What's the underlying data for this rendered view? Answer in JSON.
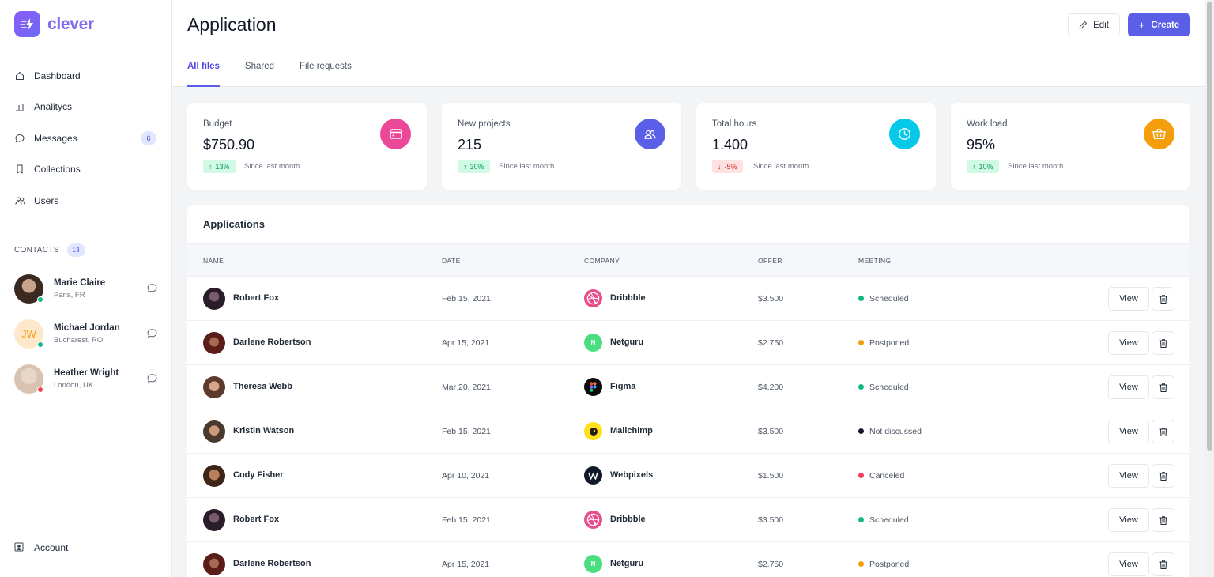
{
  "app": {
    "name": "clever"
  },
  "sidebar": {
    "items": [
      {
        "label": "Dashboard",
        "icon": "home-icon"
      },
      {
        "label": "Analitycs",
        "icon": "bar-chart-icon"
      },
      {
        "label": "Messages",
        "icon": "message-icon",
        "badge": "6"
      },
      {
        "label": "Collections",
        "icon": "bookmark-icon"
      },
      {
        "label": "Users",
        "icon": "users-icon"
      }
    ],
    "contacts_label": "CONTACTS",
    "contacts_count": "13",
    "contacts": [
      {
        "name": "Marie Claire",
        "location": "Paris, FR",
        "status": "online",
        "status_color": "#10b981"
      },
      {
        "name": "Michael Jordan",
        "location": "Bucharest, RO",
        "initials": "JW",
        "status": "online",
        "status_color": "#10b981"
      },
      {
        "name": "Heather Wright",
        "location": "London, UK",
        "status": "busy",
        "status_color": "#ef4444"
      }
    ],
    "account_label": "Account"
  },
  "header": {
    "title": "Application",
    "edit_label": "Edit",
    "create_label": "Create",
    "tabs": [
      {
        "label": "All files",
        "active": true
      },
      {
        "label": "Shared",
        "active": false
      },
      {
        "label": "File requests",
        "active": false
      }
    ]
  },
  "stats": [
    {
      "label": "Budget",
      "value": "$750.90",
      "change": "13%",
      "direction": "up",
      "since": "Since last month",
      "icon": "credit-card-icon",
      "color": "#ec4899"
    },
    {
      "label": "New projects",
      "value": "215",
      "change": "30%",
      "direction": "up",
      "since": "Since last month",
      "icon": "users-icon",
      "color": "#5b5fe8"
    },
    {
      "label": "Total hours",
      "value": "1.400",
      "change": "-5%",
      "direction": "down",
      "since": "Since last month",
      "icon": "clock-icon",
      "color": "#06c8e8"
    },
    {
      "label": "Work load",
      "value": "95%",
      "change": "10%",
      "direction": "up",
      "since": "Since last month",
      "icon": "basket-icon",
      "color": "#f59e0b"
    }
  ],
  "table": {
    "title": "Applications",
    "columns": [
      "NAME",
      "DATE",
      "COMPANY",
      "OFFER",
      "MEETING"
    ],
    "view_label": "View",
    "rows": [
      {
        "name": "Robert Fox",
        "date": "Feb 15, 2021",
        "company": "Dribbble",
        "offer": "$3.500",
        "meeting": "Scheduled",
        "meeting_color": "#10b981"
      },
      {
        "name": "Darlene Robertson",
        "date": "Apr 15, 2021",
        "company": "Netguru",
        "offer": "$2.750",
        "meeting": "Postponed",
        "meeting_color": "#f59e0b"
      },
      {
        "name": "Theresa Webb",
        "date": "Mar 20, 2021",
        "company": "Figma",
        "offer": "$4.200",
        "meeting": "Scheduled",
        "meeting_color": "#10b981"
      },
      {
        "name": "Kristin Watson",
        "date": "Feb 15, 2021",
        "company": "Mailchimp",
        "offer": "$3.500",
        "meeting": "Not discussed",
        "meeting_color": "#111827"
      },
      {
        "name": "Cody Fisher",
        "date": "Apr 10, 2021",
        "company": "Webpixels",
        "offer": "$1.500",
        "meeting": "Canceled",
        "meeting_color": "#f43f5e"
      },
      {
        "name": "Robert Fox",
        "date": "Feb 15, 2021",
        "company": "Dribbble",
        "offer": "$3.500",
        "meeting": "Scheduled",
        "meeting_color": "#10b981"
      },
      {
        "name": "Darlene Robertson",
        "date": "Apr 15, 2021",
        "company": "Netguru",
        "offer": "$2.750",
        "meeting": "Postponed",
        "meeting_color": "#f59e0b"
      }
    ]
  },
  "colors": {
    "accent": "#5b5fe8",
    "brand": "#7c6cf0"
  }
}
